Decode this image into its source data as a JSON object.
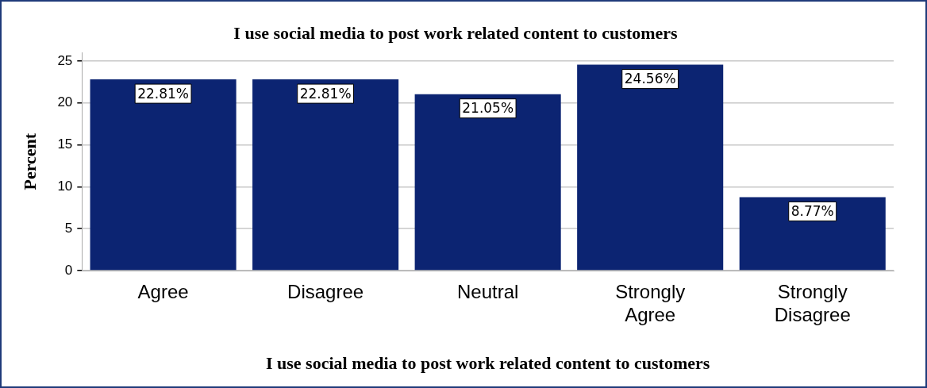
{
  "chart_data": {
    "type": "bar",
    "title": "I use social media to post work related content to customers",
    "xlabel": "I use social media to post work related content to customers",
    "ylabel": "Percent",
    "categories": [
      "Agree",
      "Disagree",
      "Neutral",
      "Strongly Agree",
      "Strongly Disagree"
    ],
    "values": [
      22.81,
      22.81,
      21.05,
      24.56,
      8.77
    ],
    "color": "#0c2472",
    "value_labels": [
      "22.81%",
      "22.81%",
      "21.05%",
      "24.56%",
      "8.77%"
    ],
    "ylim": [
      0,
      26
    ],
    "yticks": [
      0,
      5,
      10,
      15,
      20,
      25
    ],
    "grid": "y"
  }
}
